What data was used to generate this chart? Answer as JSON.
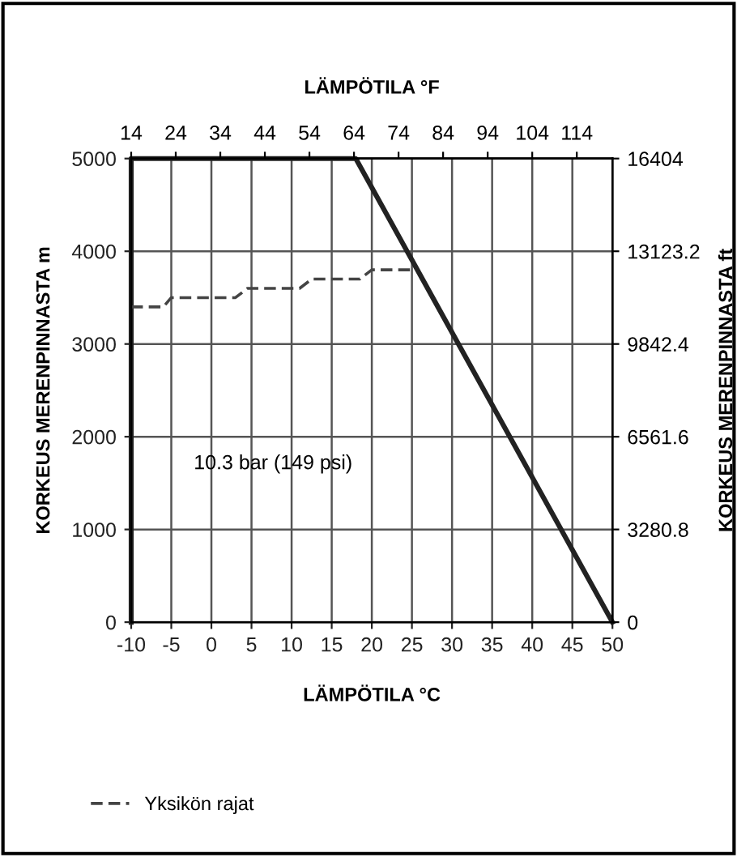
{
  "chart_data": {
    "type": "line",
    "x2label": "LÄMPÖTILA °F",
    "xlabel": "LÄMPÖTILA °C",
    "ylabel": "KORKEUS MERENPINNASTA m",
    "y2label": "KORKEUS MERENPINNASTA ft",
    "series": [
      {
        "color": "#222222",
        "line_style": "solid",
        "x": [
          -10,
          -10,
          18,
          50
        ],
        "values": [
          0,
          5000,
          5000,
          0
        ]
      },
      {
        "name": "Yksikön rajat",
        "color": "#444444",
        "line_style": "dashed",
        "x": [
          -10,
          -6,
          -5,
          3,
          4.5,
          11,
          12.5,
          18.5,
          20,
          25.5
        ],
        "values": [
          3400,
          3400,
          3500,
          3500,
          3600,
          3600,
          3700,
          3700,
          3800,
          3800
        ]
      }
    ],
    "xlim": [
      -10,
      50
    ],
    "xticks": [
      -10,
      -5,
      0,
      5,
      10,
      15,
      20,
      25,
      30,
      35,
      40,
      45,
      50
    ],
    "ylim": [
      0,
      5000
    ],
    "yticks": [
      0,
      1000,
      2000,
      3000,
      4000,
      5000
    ],
    "x2lim": [
      14,
      122
    ],
    "x2ticks": [
      14,
      24,
      34,
      44,
      54,
      64,
      74,
      84,
      94,
      104,
      114
    ],
    "y2lim": [
      0,
      16404
    ],
    "y2ticks": [
      0,
      3280.8,
      6561.6,
      9842.4,
      13123.2,
      16404
    ],
    "grid": true,
    "legend": "bottom left",
    "marker": "none",
    "annotations": [
      "10.3 bar (149 psi)"
    ]
  }
}
